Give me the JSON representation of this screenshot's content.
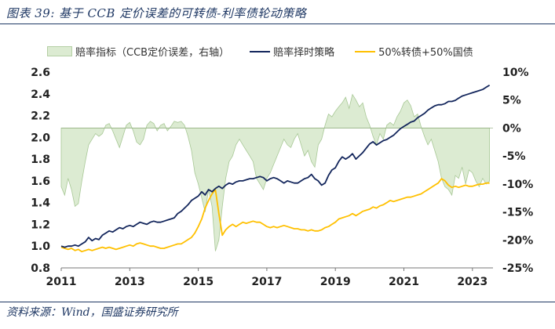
{
  "header": {
    "title": "图表 39:  基于 CCB 定价误差的可转债-利率债轮动策略"
  },
  "footer": {
    "source": "资料来源：Wind，国盛证券研究所"
  },
  "colors": {
    "area_fill": "#dcebd2",
    "area_stroke": "#a8c896",
    "strategy_line": "#13265c",
    "mix_line": "#ffc000"
  },
  "chart_data": {
    "type": "line",
    "title": "",
    "x_ticks": [
      "2011",
      "2013",
      "2015",
      "2017",
      "2019",
      "2021",
      "2023"
    ],
    "x_range": [
      2011.0,
      2023.6
    ],
    "left_axis": {
      "ylim": [
        0.8,
        2.6
      ],
      "ticks": [
        "0.8",
        "1.0",
        "1.2",
        "1.4",
        "1.6",
        "1.8",
        "2.0",
        "2.2",
        "2.4",
        "2.6"
      ]
    },
    "right_axis": {
      "ylim": [
        -25,
        10
      ],
      "ticks": [
        "-25%",
        "-20%",
        "-15%",
        "-10%",
        "-5%",
        "0%",
        "5%",
        "10%"
      ]
    },
    "series": [
      {
        "name": "赔率指标（CCB定价误差，右轴）",
        "kind": "area",
        "axis": "right",
        "x": [
          2011.0,
          2011.1,
          2011.2,
          2011.3,
          2011.4,
          2011.5,
          2011.6,
          2011.7,
          2011.8,
          2011.9,
          2012.0,
          2012.1,
          2012.2,
          2012.3,
          2012.4,
          2012.5,
          2012.6,
          2012.7,
          2012.8,
          2012.9,
          2013.0,
          2013.1,
          2013.2,
          2013.3,
          2013.4,
          2013.5,
          2013.6,
          2013.7,
          2013.8,
          2013.9,
          2014.0,
          2014.1,
          2014.2,
          2014.3,
          2014.4,
          2014.5,
          2014.6,
          2014.7,
          2014.8,
          2014.9,
          2015.0,
          2015.1,
          2015.2,
          2015.3,
          2015.4,
          2015.5,
          2015.6,
          2015.7,
          2015.8,
          2015.9,
          2016.0,
          2016.1,
          2016.2,
          2016.3,
          2016.4,
          2016.5,
          2016.6,
          2016.7,
          2016.8,
          2016.9,
          2017.0,
          2017.1,
          2017.2,
          2017.3,
          2017.4,
          2017.5,
          2017.6,
          2017.7,
          2017.8,
          2017.9,
          2018.0,
          2018.1,
          2018.2,
          2018.3,
          2018.4,
          2018.5,
          2018.6,
          2018.7,
          2018.8,
          2018.9,
          2019.0,
          2019.1,
          2019.2,
          2019.3,
          2019.4,
          2019.5,
          2019.6,
          2019.7,
          2019.8,
          2019.9,
          2020.0,
          2020.1,
          2020.2,
          2020.3,
          2020.4,
          2020.5,
          2020.6,
          2020.7,
          2020.8,
          2020.9,
          2021.0,
          2021.1,
          2021.2,
          2021.3,
          2021.4,
          2021.5,
          2021.6,
          2021.7,
          2021.8,
          2021.9,
          2022.0,
          2022.1,
          2022.2,
          2022.3,
          2022.4,
          2022.5,
          2022.6,
          2022.7,
          2022.8,
          2022.9,
          2023.0,
          2023.1,
          2023.2,
          2023.3,
          2023.4,
          2023.5
        ],
        "values": [
          -10.5,
          -12.0,
          -9.0,
          -11.0,
          -14.0,
          -13.5,
          -9.5,
          -6.0,
          -3.0,
          -2.0,
          -1.0,
          -1.5,
          -1.0,
          0.5,
          0.8,
          -0.5,
          -2.0,
          -3.5,
          -1.5,
          0.5,
          1.0,
          -0.5,
          -2.5,
          -3.0,
          -2.0,
          0.5,
          1.2,
          0.8,
          -0.5,
          0.5,
          0.8,
          -0.5,
          0.3,
          1.2,
          1.0,
          1.2,
          0.5,
          -1.5,
          -4.0,
          -8.0,
          -10.0,
          -12.5,
          -15.0,
          -11.0,
          -14.0,
          -22.0,
          -20.0,
          -14.0,
          -9.0,
          -6.0,
          -5.0,
          -3.0,
          -2.0,
          -3.0,
          -4.0,
          -5.0,
          -6.0,
          -9.0,
          -10.0,
          -11.0,
          -9.0,
          -8.0,
          -6.5,
          -5.0,
          -3.5,
          -2.0,
          -3.0,
          -3.5,
          -2.0,
          -1.0,
          -3.0,
          -5.0,
          -4.0,
          -6.0,
          -7.0,
          -3.0,
          -2.0,
          0.5,
          2.5,
          2.0,
          3.0,
          3.8,
          4.5,
          5.5,
          3.5,
          6.0,
          5.0,
          3.8,
          4.5,
          2.0,
          0.5,
          -1.5,
          -3.0,
          -1.0,
          -2.0,
          0.5,
          1.0,
          0.5,
          2.0,
          3.0,
          4.5,
          5.0,
          4.0,
          2.0,
          2.5,
          0.3,
          -1.5,
          -3.0,
          -2.0,
          -4.0,
          -6.0,
          -9.0,
          -10.5,
          -11.0,
          -12.0,
          -8.5,
          -9.0,
          -7.0,
          -10.0,
          -7.5,
          -8.0,
          -9.5,
          -10.5,
          -9.0,
          -10.0,
          -9.5
        ]
      },
      {
        "name": "赔率择时策略",
        "kind": "line",
        "axis": "left",
        "x": [
          2011.0,
          2011.1,
          2011.2,
          2011.3,
          2011.4,
          2011.5,
          2011.6,
          2011.7,
          2011.8,
          2011.9,
          2012.0,
          2012.1,
          2012.2,
          2012.3,
          2012.4,
          2012.5,
          2012.6,
          2012.7,
          2012.8,
          2012.9,
          2013.0,
          2013.1,
          2013.2,
          2013.3,
          2013.4,
          2013.5,
          2013.6,
          2013.7,
          2013.8,
          2013.9,
          2014.0,
          2014.1,
          2014.2,
          2014.3,
          2014.4,
          2014.5,
          2014.6,
          2014.7,
          2014.8,
          2014.9,
          2015.0,
          2015.1,
          2015.2,
          2015.3,
          2015.4,
          2015.5,
          2015.6,
          2015.7,
          2015.8,
          2015.9,
          2016.0,
          2016.1,
          2016.2,
          2016.3,
          2016.4,
          2016.5,
          2016.6,
          2016.7,
          2016.8,
          2016.9,
          2017.0,
          2017.1,
          2017.2,
          2017.3,
          2017.4,
          2017.5,
          2017.6,
          2017.7,
          2017.8,
          2017.9,
          2018.0,
          2018.1,
          2018.2,
          2018.3,
          2018.4,
          2018.5,
          2018.6,
          2018.7,
          2018.8,
          2018.9,
          2019.0,
          2019.1,
          2019.2,
          2019.3,
          2019.4,
          2019.5,
          2019.6,
          2019.7,
          2019.8,
          2019.9,
          2020.0,
          2020.1,
          2020.2,
          2020.3,
          2020.4,
          2020.5,
          2020.6,
          2020.7,
          2020.8,
          2020.9,
          2021.0,
          2021.1,
          2021.2,
          2021.3,
          2021.4,
          2021.5,
          2021.6,
          2021.7,
          2021.8,
          2021.9,
          2022.0,
          2022.1,
          2022.2,
          2022.3,
          2022.4,
          2022.5,
          2022.6,
          2022.7,
          2022.8,
          2022.9,
          2023.0,
          2023.1,
          2023.2,
          2023.3,
          2023.4,
          2023.5
        ],
        "values": [
          1.0,
          0.99,
          1.0,
          1.0,
          1.01,
          1.0,
          1.02,
          1.04,
          1.08,
          1.05,
          1.07,
          1.06,
          1.1,
          1.12,
          1.14,
          1.13,
          1.15,
          1.17,
          1.16,
          1.18,
          1.19,
          1.18,
          1.2,
          1.22,
          1.21,
          1.2,
          1.22,
          1.23,
          1.22,
          1.22,
          1.23,
          1.24,
          1.25,
          1.26,
          1.3,
          1.32,
          1.35,
          1.38,
          1.42,
          1.44,
          1.46,
          1.5,
          1.47,
          1.52,
          1.5,
          1.53,
          1.55,
          1.53,
          1.56,
          1.58,
          1.57,
          1.59,
          1.6,
          1.6,
          1.61,
          1.62,
          1.62,
          1.63,
          1.64,
          1.63,
          1.6,
          1.62,
          1.63,
          1.62,
          1.6,
          1.58,
          1.6,
          1.59,
          1.58,
          1.58,
          1.6,
          1.62,
          1.63,
          1.66,
          1.62,
          1.6,
          1.56,
          1.58,
          1.65,
          1.7,
          1.72,
          1.78,
          1.82,
          1.8,
          1.82,
          1.85,
          1.8,
          1.83,
          1.86,
          1.9,
          1.94,
          1.96,
          1.93,
          1.95,
          1.97,
          1.98,
          2.0,
          2.02,
          2.05,
          2.08,
          2.1,
          2.12,
          2.14,
          2.15,
          2.18,
          2.2,
          2.22,
          2.25,
          2.27,
          2.29,
          2.3,
          2.3,
          2.31,
          2.33,
          2.33,
          2.34,
          2.36,
          2.38,
          2.39,
          2.4,
          2.41,
          2.42,
          2.43,
          2.44,
          2.46,
          2.48
        ]
      },
      {
        "name": "50%转债+50%国债",
        "kind": "line",
        "axis": "left",
        "x": [
          2011.0,
          2011.1,
          2011.2,
          2011.3,
          2011.4,
          2011.5,
          2011.6,
          2011.7,
          2011.8,
          2011.9,
          2012.0,
          2012.1,
          2012.2,
          2012.3,
          2012.4,
          2012.5,
          2012.6,
          2012.7,
          2012.8,
          2012.9,
          2013.0,
          2013.1,
          2013.2,
          2013.3,
          2013.4,
          2013.5,
          2013.6,
          2013.7,
          2013.8,
          2013.9,
          2014.0,
          2014.1,
          2014.2,
          2014.3,
          2014.4,
          2014.5,
          2014.6,
          2014.7,
          2014.8,
          2014.9,
          2015.0,
          2015.1,
          2015.2,
          2015.3,
          2015.4,
          2015.5,
          2015.6,
          2015.7,
          2015.8,
          2015.9,
          2016.0,
          2016.1,
          2016.2,
          2016.3,
          2016.4,
          2016.5,
          2016.6,
          2016.7,
          2016.8,
          2016.9,
          2017.0,
          2017.1,
          2017.2,
          2017.3,
          2017.4,
          2017.5,
          2017.6,
          2017.7,
          2017.8,
          2017.9,
          2018.0,
          2018.1,
          2018.2,
          2018.3,
          2018.4,
          2018.5,
          2018.6,
          2018.7,
          2018.8,
          2018.9,
          2019.0,
          2019.1,
          2019.2,
          2019.3,
          2019.4,
          2019.5,
          2019.6,
          2019.7,
          2019.8,
          2019.9,
          2020.0,
          2020.1,
          2020.2,
          2020.3,
          2020.4,
          2020.5,
          2020.6,
          2020.7,
          2020.8,
          2020.9,
          2021.0,
          2021.1,
          2021.2,
          2021.3,
          2021.4,
          2021.5,
          2021.6,
          2021.7,
          2021.8,
          2021.9,
          2022.0,
          2022.1,
          2022.2,
          2022.3,
          2022.4,
          2022.5,
          2022.6,
          2022.7,
          2022.8,
          2022.9,
          2023.0,
          2023.1,
          2023.2,
          2023.3,
          2023.4,
          2023.5
        ],
        "values": [
          0.99,
          0.98,
          0.97,
          0.98,
          0.96,
          0.97,
          0.95,
          0.96,
          0.97,
          0.96,
          0.97,
          0.98,
          0.99,
          0.98,
          0.99,
          0.98,
          0.97,
          0.98,
          0.99,
          1.0,
          1.01,
          1.0,
          1.02,
          1.03,
          1.02,
          1.01,
          1.0,
          1.0,
          0.99,
          0.98,
          0.98,
          0.99,
          1.0,
          1.01,
          1.02,
          1.02,
          1.04,
          1.06,
          1.08,
          1.12,
          1.18,
          1.25,
          1.35,
          1.42,
          1.48,
          1.52,
          1.3,
          1.1,
          1.15,
          1.18,
          1.2,
          1.18,
          1.2,
          1.22,
          1.21,
          1.22,
          1.23,
          1.22,
          1.22,
          1.2,
          1.18,
          1.17,
          1.18,
          1.17,
          1.18,
          1.19,
          1.18,
          1.17,
          1.16,
          1.16,
          1.15,
          1.15,
          1.14,
          1.15,
          1.14,
          1.14,
          1.15,
          1.17,
          1.18,
          1.2,
          1.22,
          1.25,
          1.26,
          1.27,
          1.28,
          1.3,
          1.28,
          1.3,
          1.32,
          1.33,
          1.34,
          1.36,
          1.35,
          1.37,
          1.38,
          1.4,
          1.42,
          1.41,
          1.42,
          1.43,
          1.44,
          1.45,
          1.45,
          1.46,
          1.47,
          1.48,
          1.5,
          1.52,
          1.54,
          1.56,
          1.58,
          1.62,
          1.6,
          1.56,
          1.54,
          1.55,
          1.54,
          1.55,
          1.56,
          1.55,
          1.55,
          1.56,
          1.57,
          1.57,
          1.58,
          1.58
        ]
      }
    ]
  }
}
